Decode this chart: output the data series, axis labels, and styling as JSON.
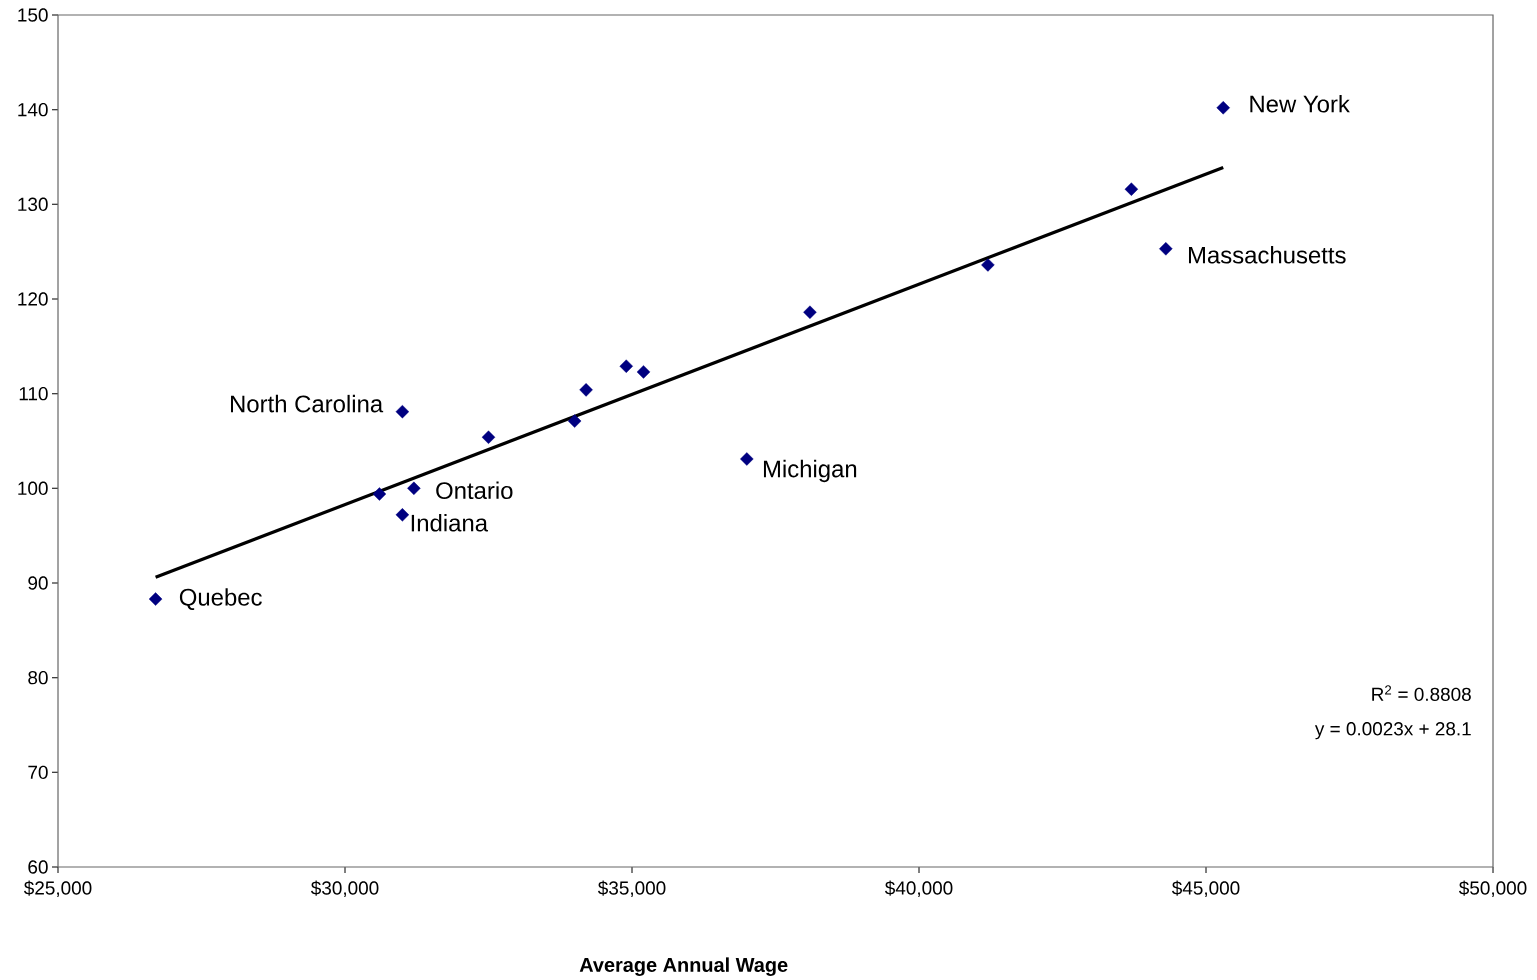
{
  "chart_data": {
    "type": "scatter",
    "xlabel": "Average Annual Wage",
    "xlim": [
      25000,
      50000
    ],
    "ylim": [
      60,
      150
    ],
    "xticks": [
      {
        "value": 25000,
        "label": "$25,000"
      },
      {
        "value": 30000,
        "label": "$30,000"
      },
      {
        "value": 35000,
        "label": "$35,000"
      },
      {
        "value": 40000,
        "label": "$40,000"
      },
      {
        "value": 45000,
        "label": "$45,000"
      },
      {
        "value": 50000,
        "label": "$50,000"
      }
    ],
    "yticks": [
      60,
      70,
      80,
      90,
      100,
      110,
      120,
      130,
      140,
      150
    ],
    "grid": false,
    "series": [
      {
        "marker": "diamond",
        "color": "#000080",
        "x": [
          26700,
          30600,
          31000,
          31000,
          31200,
          32500,
          34000,
          34200,
          34900,
          35200,
          37000,
          38100,
          41200,
          43700,
          44300,
          45300
        ],
        "values": [
          88.3,
          99.4,
          108.1,
          97.2,
          100.0,
          105.4,
          107.1,
          110.4,
          112.9,
          112.3,
          103.1,
          118.6,
          123.6,
          131.6,
          125.3,
          140.2
        ]
      },
      {
        "type": "line",
        "marker": "none",
        "color": "#000000",
        "x": [
          26700,
          45300
        ],
        "values": [
          90.6,
          133.9
        ]
      }
    ],
    "annotations": [
      {
        "text": "New York",
        "x": 45300,
        "y": 140.2
      },
      {
        "text": "Massachusetts",
        "x": 44300,
        "y": 125.3
      },
      {
        "text": "North Carolina",
        "x": 31000,
        "y": 108.1
      },
      {
        "text": "Ontario",
        "x": 31200,
        "y": 100.0
      },
      {
        "text": "Indiana",
        "x": 31000,
        "y": 97.2
      },
      {
        "text": "Michigan",
        "x": 37000,
        "y": 103.1
      },
      {
        "text": "Quebec",
        "x": 26700,
        "y": 88.3
      },
      "R$^{2}$ = 0.8808",
      "y = 0.0023x + 28.1"
    ]
  }
}
